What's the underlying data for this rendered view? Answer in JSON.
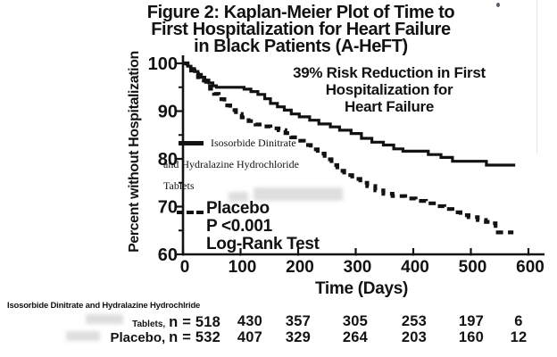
{
  "figure_title": {
    "line1": "Figure 2: Kaplan-Meier Plot of Time to",
    "line2": "First Hospitalization for Heart Failure",
    "line3": "in Black Patients (A-HeFT)"
  },
  "chart_data": {
    "type": "line",
    "subtype": "kaplan_meier_step",
    "title": "Figure 2: Kaplan-Meier Plot of Time to First Hospitalization for Heart Failure in Black Patients (A-HeFT)",
    "xlabel": "Time (Days)",
    "ylabel": "Percent without Hospitalization",
    "xlim": [
      0,
      600
    ],
    "ylim": [
      60,
      100
    ],
    "x_ticks": [
      0,
      100,
      200,
      300,
      400,
      500,
      600
    ],
    "y_ticks": [
      100,
      90,
      80,
      70,
      60
    ],
    "y_minor_ticks": [
      95,
      85,
      75,
      65
    ],
    "grid": false,
    "legend_position": "inside-left",
    "annotation": {
      "line1": "39% Risk Reduction in First",
      "line2": "Hospitalization for",
      "line3": "Heart Failure"
    },
    "stats": {
      "p_value": "P <0.001",
      "test": "Log-Rank Test"
    },
    "series": [
      {
        "name": "Isosorbide Dinitrate and Hydralazine Hydrochloride Tablets",
        "style": "solid",
        "points": [
          [
            0,
            100
          ],
          [
            8,
            99.4
          ],
          [
            14,
            98.9
          ],
          [
            20,
            98.3
          ],
          [
            26,
            97.7
          ],
          [
            32,
            97.1
          ],
          [
            38,
            96.5
          ],
          [
            45,
            95.9
          ],
          [
            52,
            95.3
          ],
          [
            58,
            95.0
          ],
          [
            106,
            94.6
          ],
          [
            118,
            94.1
          ],
          [
            130,
            93.5
          ],
          [
            142,
            92.6
          ],
          [
            152,
            91.6
          ],
          [
            164,
            90.9
          ],
          [
            176,
            90.2
          ],
          [
            188,
            89.4
          ],
          [
            202,
            88.8
          ],
          [
            220,
            88.1
          ],
          [
            236,
            87.3
          ],
          [
            256,
            86.7
          ],
          [
            272,
            86.0
          ],
          [
            292,
            85.3
          ],
          [
            310,
            84.3
          ],
          [
            328,
            83.5
          ],
          [
            348,
            82.9
          ],
          [
            366,
            82.1
          ],
          [
            382,
            81.6
          ],
          [
            426,
            80.9
          ],
          [
            448,
            80.3
          ],
          [
            468,
            79.5
          ],
          [
            527,
            78.7
          ],
          [
            577,
            78.7
          ]
        ],
        "at_risk_days": [
          0,
          100,
          200,
          300,
          400,
          500,
          600
        ],
        "at_risk": [
          518,
          430,
          357,
          305,
          253,
          197,
          6
        ]
      },
      {
        "name": "Placebo",
        "style": "dashed",
        "points": [
          [
            0,
            100
          ],
          [
            8,
            99.2
          ],
          [
            14,
            98.5
          ],
          [
            20,
            97.8
          ],
          [
            26,
            97.1
          ],
          [
            32,
            96.4
          ],
          [
            40,
            95.6
          ],
          [
            47,
            94.7
          ],
          [
            54,
            93.6
          ],
          [
            62,
            92.5
          ],
          [
            72,
            91.2
          ],
          [
            82,
            90.2
          ],
          [
            92,
            89.4
          ],
          [
            102,
            88.7
          ],
          [
            114,
            87.9
          ],
          [
            126,
            87.2
          ],
          [
            138,
            86.8
          ],
          [
            152,
            86.4
          ],
          [
            166,
            86.0
          ],
          [
            178,
            85.4
          ],
          [
            188,
            84.5
          ],
          [
            198,
            83.8
          ],
          [
            210,
            82.9
          ],
          [
            222,
            82.0
          ],
          [
            234,
            81.1
          ],
          [
            246,
            79.9
          ],
          [
            258,
            78.7
          ],
          [
            268,
            77.5
          ],
          [
            280,
            76.6
          ],
          [
            294,
            75.8
          ],
          [
            308,
            75.0
          ],
          [
            320,
            74.3
          ],
          [
            334,
            73.4
          ],
          [
            348,
            72.7
          ],
          [
            364,
            72.2
          ],
          [
            386,
            71.7
          ],
          [
            404,
            71.2
          ],
          [
            422,
            70.7
          ],
          [
            440,
            70.1
          ],
          [
            454,
            69.5
          ],
          [
            468,
            68.8
          ],
          [
            482,
            68.2
          ],
          [
            496,
            67.8
          ],
          [
            512,
            67.2
          ],
          [
            526,
            66.8
          ],
          [
            536,
            66.5
          ],
          [
            543,
            64.6
          ],
          [
            574,
            64.6
          ]
        ],
        "at_risk_days": [
          0,
          100,
          200,
          300,
          400,
          500,
          600
        ],
        "at_risk": [
          532,
          407,
          329,
          264,
          203,
          160,
          12
        ]
      }
    ]
  },
  "legend": {
    "treatment": {
      "line1": "Isosorbide Dinitrate",
      "line2": "and Hydralazine Hydrochloride",
      "line3": "Tablets"
    },
    "placebo": {
      "label": "Placebo",
      "p_value": "P <0.001",
      "test": "Log-Rank Test"
    }
  },
  "risk_table": {
    "header": "Isosorbide Dinitrate and Hydralazine Hydrochlride",
    "rows": [
      {
        "prefix": "Tablets,",
        "n_label": "n = 518",
        "counts": [
          "430",
          "357",
          "305",
          "253",
          "197",
          "6"
        ]
      },
      {
        "prefix": "Placebo,",
        "n_label": "n = 532",
        "counts": [
          "407",
          "329",
          "264",
          "203",
          "160",
          "12"
        ]
      }
    ]
  },
  "colors": {
    "ink": "#121212",
    "bg": "#ffffff"
  }
}
